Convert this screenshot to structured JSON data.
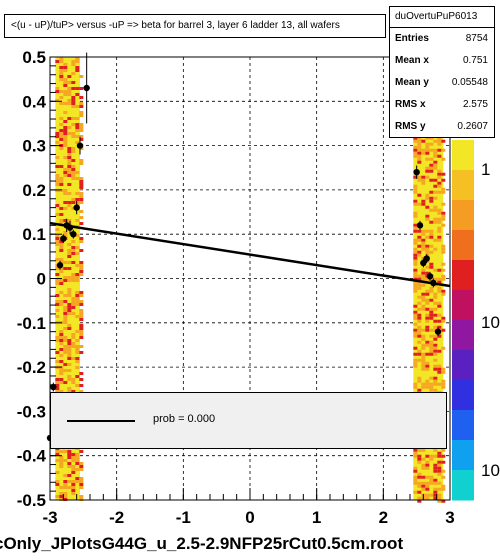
{
  "title": "<(u - uP)/tuP> versus  -uP => beta for barrel 3, layer 6 ladder 13, all  wafers",
  "stats": {
    "name": "duOvertuPuP6013",
    "rows": [
      {
        "key": "Entries",
        "value": "8754"
      },
      {
        "key": "Mean x",
        "value": "0.751"
      },
      {
        "key": "Mean y",
        "value": "0.05548"
      },
      {
        "key": "RMS x",
        "value": "2.575"
      },
      {
        "key": "RMS y",
        "value": "0.2607"
      }
    ]
  },
  "legend": {
    "label": "prob = 0.000"
  },
  "footer": "cOnly_JPlotsG44G_u_2.5-2.9NFP25rCut0.5cm.root",
  "palette_labels": [
    "1",
    "10",
    "10"
  ],
  "colors": {
    "band_base": "#f2e626",
    "band_mid": "#f5a623",
    "band_hot": "#e02020",
    "fit": "#000000"
  },
  "chart_data": {
    "type": "scatter",
    "xlim": [
      -3,
      3
    ],
    "ylim": [
      -0.5,
      0.5
    ],
    "x_ticks": [
      -3,
      -2,
      -1,
      0,
      1,
      2,
      3
    ],
    "y_ticks": [
      0.5,
      0.4,
      0.3,
      0.2,
      0.1,
      0,
      -0.1,
      -0.2,
      -0.3,
      -0.4,
      -0.5
    ],
    "x_tick_labels": [
      "-3",
      "-2",
      "-1",
      "0",
      "1",
      "2",
      "3"
    ],
    "y_tick_labels": [
      "0.5",
      "0.4",
      "0.3",
      "0.2",
      "0.1",
      "0",
      "-0.1",
      "-0.2",
      "-0.3",
      "-0.4",
      "-0.5"
    ],
    "grid": true,
    "density_bands": [
      {
        "x_from": -2.92,
        "x_to": -2.55,
        "y_from": -0.5,
        "y_to": 0.5
      },
      {
        "x_from": 2.45,
        "x_to": 2.9,
        "y_from": -0.5,
        "y_to": 0.32
      }
    ],
    "points": [
      {
        "x": -2.85,
        "y": 0.03,
        "err": 0.01
      },
      {
        "x": -2.8,
        "y": 0.09,
        "err": 0.01
      },
      {
        "x": -2.75,
        "y": 0.12,
        "err": 0.015
      },
      {
        "x": -2.7,
        "y": 0.115,
        "err": 0.015
      },
      {
        "x": -2.65,
        "y": 0.1,
        "err": 0.01
      },
      {
        "x": -2.6,
        "y": 0.16,
        "err": 0.015
      },
      {
        "x": -2.55,
        "y": 0.3,
        "err": 0.02
      },
      {
        "x": -2.45,
        "y": 0.43,
        "err": 0.08
      },
      {
        "x": -2.95,
        "y": -0.245,
        "err": 0.01
      },
      {
        "x": -3.0,
        "y": -0.36,
        "err": 0.01
      },
      {
        "x": 2.5,
        "y": 0.24,
        "err": 0.015
      },
      {
        "x": 2.55,
        "y": 0.12,
        "err": 0.01
      },
      {
        "x": 2.6,
        "y": 0.035,
        "err": 0.01
      },
      {
        "x": 2.65,
        "y": 0.045,
        "err": 0.01
      },
      {
        "x": 2.7,
        "y": 0.005,
        "err": 0.01
      },
      {
        "x": 2.75,
        "y": -0.01,
        "err": 0.01
      },
      {
        "x": 2.82,
        "y": -0.12,
        "err": 0.01
      }
    ],
    "fit_line": {
      "x": [
        -3,
        3
      ],
      "y": [
        0.125,
        -0.017
      ]
    }
  }
}
